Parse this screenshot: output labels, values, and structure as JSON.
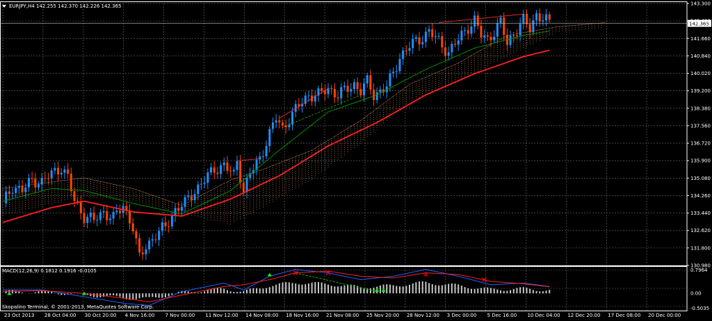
{
  "window": {
    "chart_title": "EURJPY,H4  142.255 142.370 142.226 142.365",
    "macd_title": "MACD(12,26,9) 0.1812 0.1916 -0.0105",
    "copyright": "Skopalino Terminal, © 2001-2013, MetaQuotes Software Corp."
  },
  "colors": {
    "background": "#000000",
    "grid": "#6e6e6e",
    "bull_candle": "#1e90ff",
    "bear_candle": "#ff4500",
    "ma_fast": "#ff2020",
    "ma_slow": "#009000",
    "ma_long": "#19b519",
    "cloud": "#ffb080",
    "macd_line": "#2060ff",
    "macd_signal": "#ff2020",
    "macd_hist": "#c8c8c8",
    "divergence": "#00c000",
    "arrow_up": "#00ff00",
    "arrow_down": "#ff0000"
  },
  "chart_data": [
    {
      "type": "candlestick",
      "title": "EURJPY,H4  142.255 142.370 142.226 142.365",
      "symbol": "EURJPY",
      "timeframe": "H4",
      "last_price": "142.365",
      "ylim": [
        130.98,
        143.3
      ],
      "y_ticks": [
        "143.300",
        "142.480",
        "141.660",
        "140.840",
        "140.020",
        "139.200",
        "138.380",
        "137.560",
        "136.720",
        "135.900",
        "135.080",
        "134.260",
        "133.440",
        "132.620",
        "131.800",
        "130.980"
      ],
      "x_ticks": [
        "23 Oct 2013",
        "28 Oct 04:00",
        "30 Oct 20:00",
        "4 Nov 16:00",
        "7 Nov 00:00",
        "11 Nov 12:00",
        "14 Nov 08:00",
        "18 Nov 16:00",
        "21 Nov 08:00",
        "25 Nov 20:00",
        "28 Nov 12:00",
        "3 Dec 00:00",
        "5 Dec 16:00",
        "10 Dec 04:00",
        "12 Dec 20:00",
        "17 Dec 08:00",
        "20 Dec 00:00"
      ],
      "close_path": [
        [
          0,
          133.9
        ],
        [
          3,
          134.7
        ],
        [
          6,
          134.5
        ],
        [
          9,
          135.0
        ],
        [
          12,
          134.9
        ],
        [
          15,
          135.3
        ],
        [
          18,
          135.6
        ],
        [
          20,
          135.1
        ],
        [
          22,
          134.0
        ],
        [
          25,
          133.3
        ],
        [
          28,
          133.1
        ],
        [
          31,
          133.5
        ],
        [
          34,
          133.2
        ],
        [
          37,
          133.8
        ],
        [
          40,
          132.8
        ],
        [
          42,
          131.3
        ],
        [
          44,
          131.9
        ],
        [
          47,
          132.4
        ],
        [
          50,
          132.8
        ],
        [
          53,
          133.6
        ],
        [
          56,
          133.9
        ],
        [
          59,
          134.5
        ],
        [
          62,
          135.0
        ],
        [
          65,
          135.5
        ],
        [
          68,
          135.7
        ],
        [
          71,
          135.2
        ],
        [
          72,
          135.9
        ],
        [
          74,
          134.5
        ],
        [
          76,
          135.3
        ],
        [
          79,
          136.0
        ],
        [
          82,
          137.2
        ],
        [
          84,
          137.9
        ],
        [
          86,
          137.4
        ],
        [
          88,
          137.9
        ],
        [
          91,
          138.5
        ],
        [
          94,
          139.0
        ],
        [
          97,
          139.0
        ],
        [
          100,
          139.3
        ],
        [
          103,
          139.0
        ],
        [
          106,
          139.3
        ],
        [
          108,
          139.5
        ],
        [
          110,
          139.2
        ],
        [
          112,
          139.6
        ],
        [
          114,
          139.0
        ],
        [
          116,
          139.2
        ],
        [
          118,
          139.4
        ],
        [
          120,
          140.0
        ],
        [
          122,
          140.8
        ],
        [
          125,
          141.3
        ],
        [
          128,
          141.6
        ],
        [
          131,
          142.0
        ],
        [
          134,
          141.5
        ],
        [
          137,
          141.0
        ],
        [
          140,
          141.6
        ],
        [
          143,
          142.2
        ],
        [
          145,
          142.5
        ],
        [
          147,
          141.8
        ],
        [
          149,
          141.6
        ],
        [
          151,
          142.0
        ],
        [
          153,
          142.4
        ],
        [
          155,
          141.4
        ],
        [
          157,
          141.9
        ],
        [
          160,
          142.5
        ],
        [
          162,
          142.1
        ],
        [
          164,
          142.8
        ],
        [
          166,
          142.6
        ],
        [
          168,
          142.365
        ]
      ],
      "ma_fast": [
        [
          0,
          133.0
        ],
        [
          15,
          133.7
        ],
        [
          25,
          134.0
        ],
        [
          40,
          133.5
        ],
        [
          55,
          133.3
        ],
        [
          70,
          134.1
        ],
        [
          85,
          135.2
        ],
        [
          100,
          136.6
        ],
        [
          115,
          137.7
        ],
        [
          130,
          139.0
        ],
        [
          145,
          140.0
        ],
        [
          160,
          140.8
        ],
        [
          168,
          141.1
        ]
      ],
      "ma_slow": [
        [
          0,
          134.0
        ],
        [
          15,
          134.6
        ],
        [
          25,
          134.5
        ],
        [
          40,
          133.9
        ],
        [
          55,
          133.4
        ],
        [
          70,
          134.5
        ],
        [
          85,
          136.4
        ],
        [
          100,
          138.2
        ],
        [
          115,
          139.0
        ],
        [
          130,
          140.2
        ],
        [
          145,
          141.2
        ],
        [
          160,
          141.8
        ],
        [
          168,
          142.0
        ]
      ],
      "cloud_upper": [
        [
          0,
          134.6
        ],
        [
          25,
          135.1
        ],
        [
          40,
          134.6
        ],
        [
          55,
          133.8
        ],
        [
          70,
          135.0
        ],
        [
          80,
          135.5
        ],
        [
          95,
          136.4
        ],
        [
          110,
          137.8
        ],
        [
          125,
          139.5
        ],
        [
          140,
          140.5
        ],
        [
          155,
          141.8
        ],
        [
          170,
          142.2
        ],
        [
          185,
          142.4
        ]
      ],
      "cloud_lower": [
        [
          0,
          133.3
        ],
        [
          25,
          134.2
        ],
        [
          40,
          134.0
        ],
        [
          55,
          133.4
        ],
        [
          70,
          132.9
        ],
        [
          80,
          133.7
        ],
        [
          95,
          135.0
        ],
        [
          110,
          136.7
        ],
        [
          125,
          138.7
        ],
        [
          140,
          139.6
        ],
        [
          155,
          140.8
        ],
        [
          170,
          141.9
        ],
        [
          185,
          142.1
        ]
      ]
    },
    {
      "type": "bar",
      "title": "MACD(12,26,9) 0.1812 0.1916 -0.0105",
      "ylim": [
        -0.5035,
        0.7964
      ],
      "y_ticks": [
        "0.7964",
        "0.00",
        "-0.5035"
      ],
      "macd": [
        [
          0,
          0.1
        ],
        [
          12,
          0.1
        ],
        [
          25,
          -0.1
        ],
        [
          38,
          -0.3
        ],
        [
          45,
          -0.35
        ],
        [
          55,
          0.05
        ],
        [
          68,
          0.3
        ],
        [
          74,
          0.1
        ],
        [
          82,
          0.5
        ],
        [
          90,
          0.7
        ],
        [
          100,
          0.6
        ],
        [
          110,
          0.4
        ],
        [
          120,
          0.5
        ],
        [
          130,
          0.7
        ],
        [
          140,
          0.5
        ],
        [
          150,
          0.25
        ],
        [
          160,
          0.3
        ],
        [
          168,
          0.2
        ]
      ],
      "signal": [
        [
          0,
          0.05
        ],
        [
          12,
          0.08
        ],
        [
          25,
          0.0
        ],
        [
          38,
          -0.15
        ],
        [
          45,
          -0.25
        ],
        [
          55,
          -0.05
        ],
        [
          68,
          0.2
        ],
        [
          74,
          0.25
        ],
        [
          82,
          0.4
        ],
        [
          90,
          0.6
        ],
        [
          100,
          0.65
        ],
        [
          110,
          0.5
        ],
        [
          120,
          0.45
        ],
        [
          130,
          0.6
        ],
        [
          140,
          0.55
        ],
        [
          150,
          0.35
        ],
        [
          160,
          0.28
        ],
        [
          168,
          0.19
        ]
      ],
      "arrows_up": [
        [
          2,
          -0.05
        ],
        [
          25,
          -0.05
        ],
        [
          82,
          0.5
        ],
        [
          115,
          0.05
        ],
        [
          117,
          0.05
        ]
      ],
      "arrows_down": [
        [
          90,
          0.6
        ],
        [
          100,
          0.6
        ],
        [
          130,
          0.55
        ],
        [
          148,
          0.4
        ]
      ]
    }
  ]
}
